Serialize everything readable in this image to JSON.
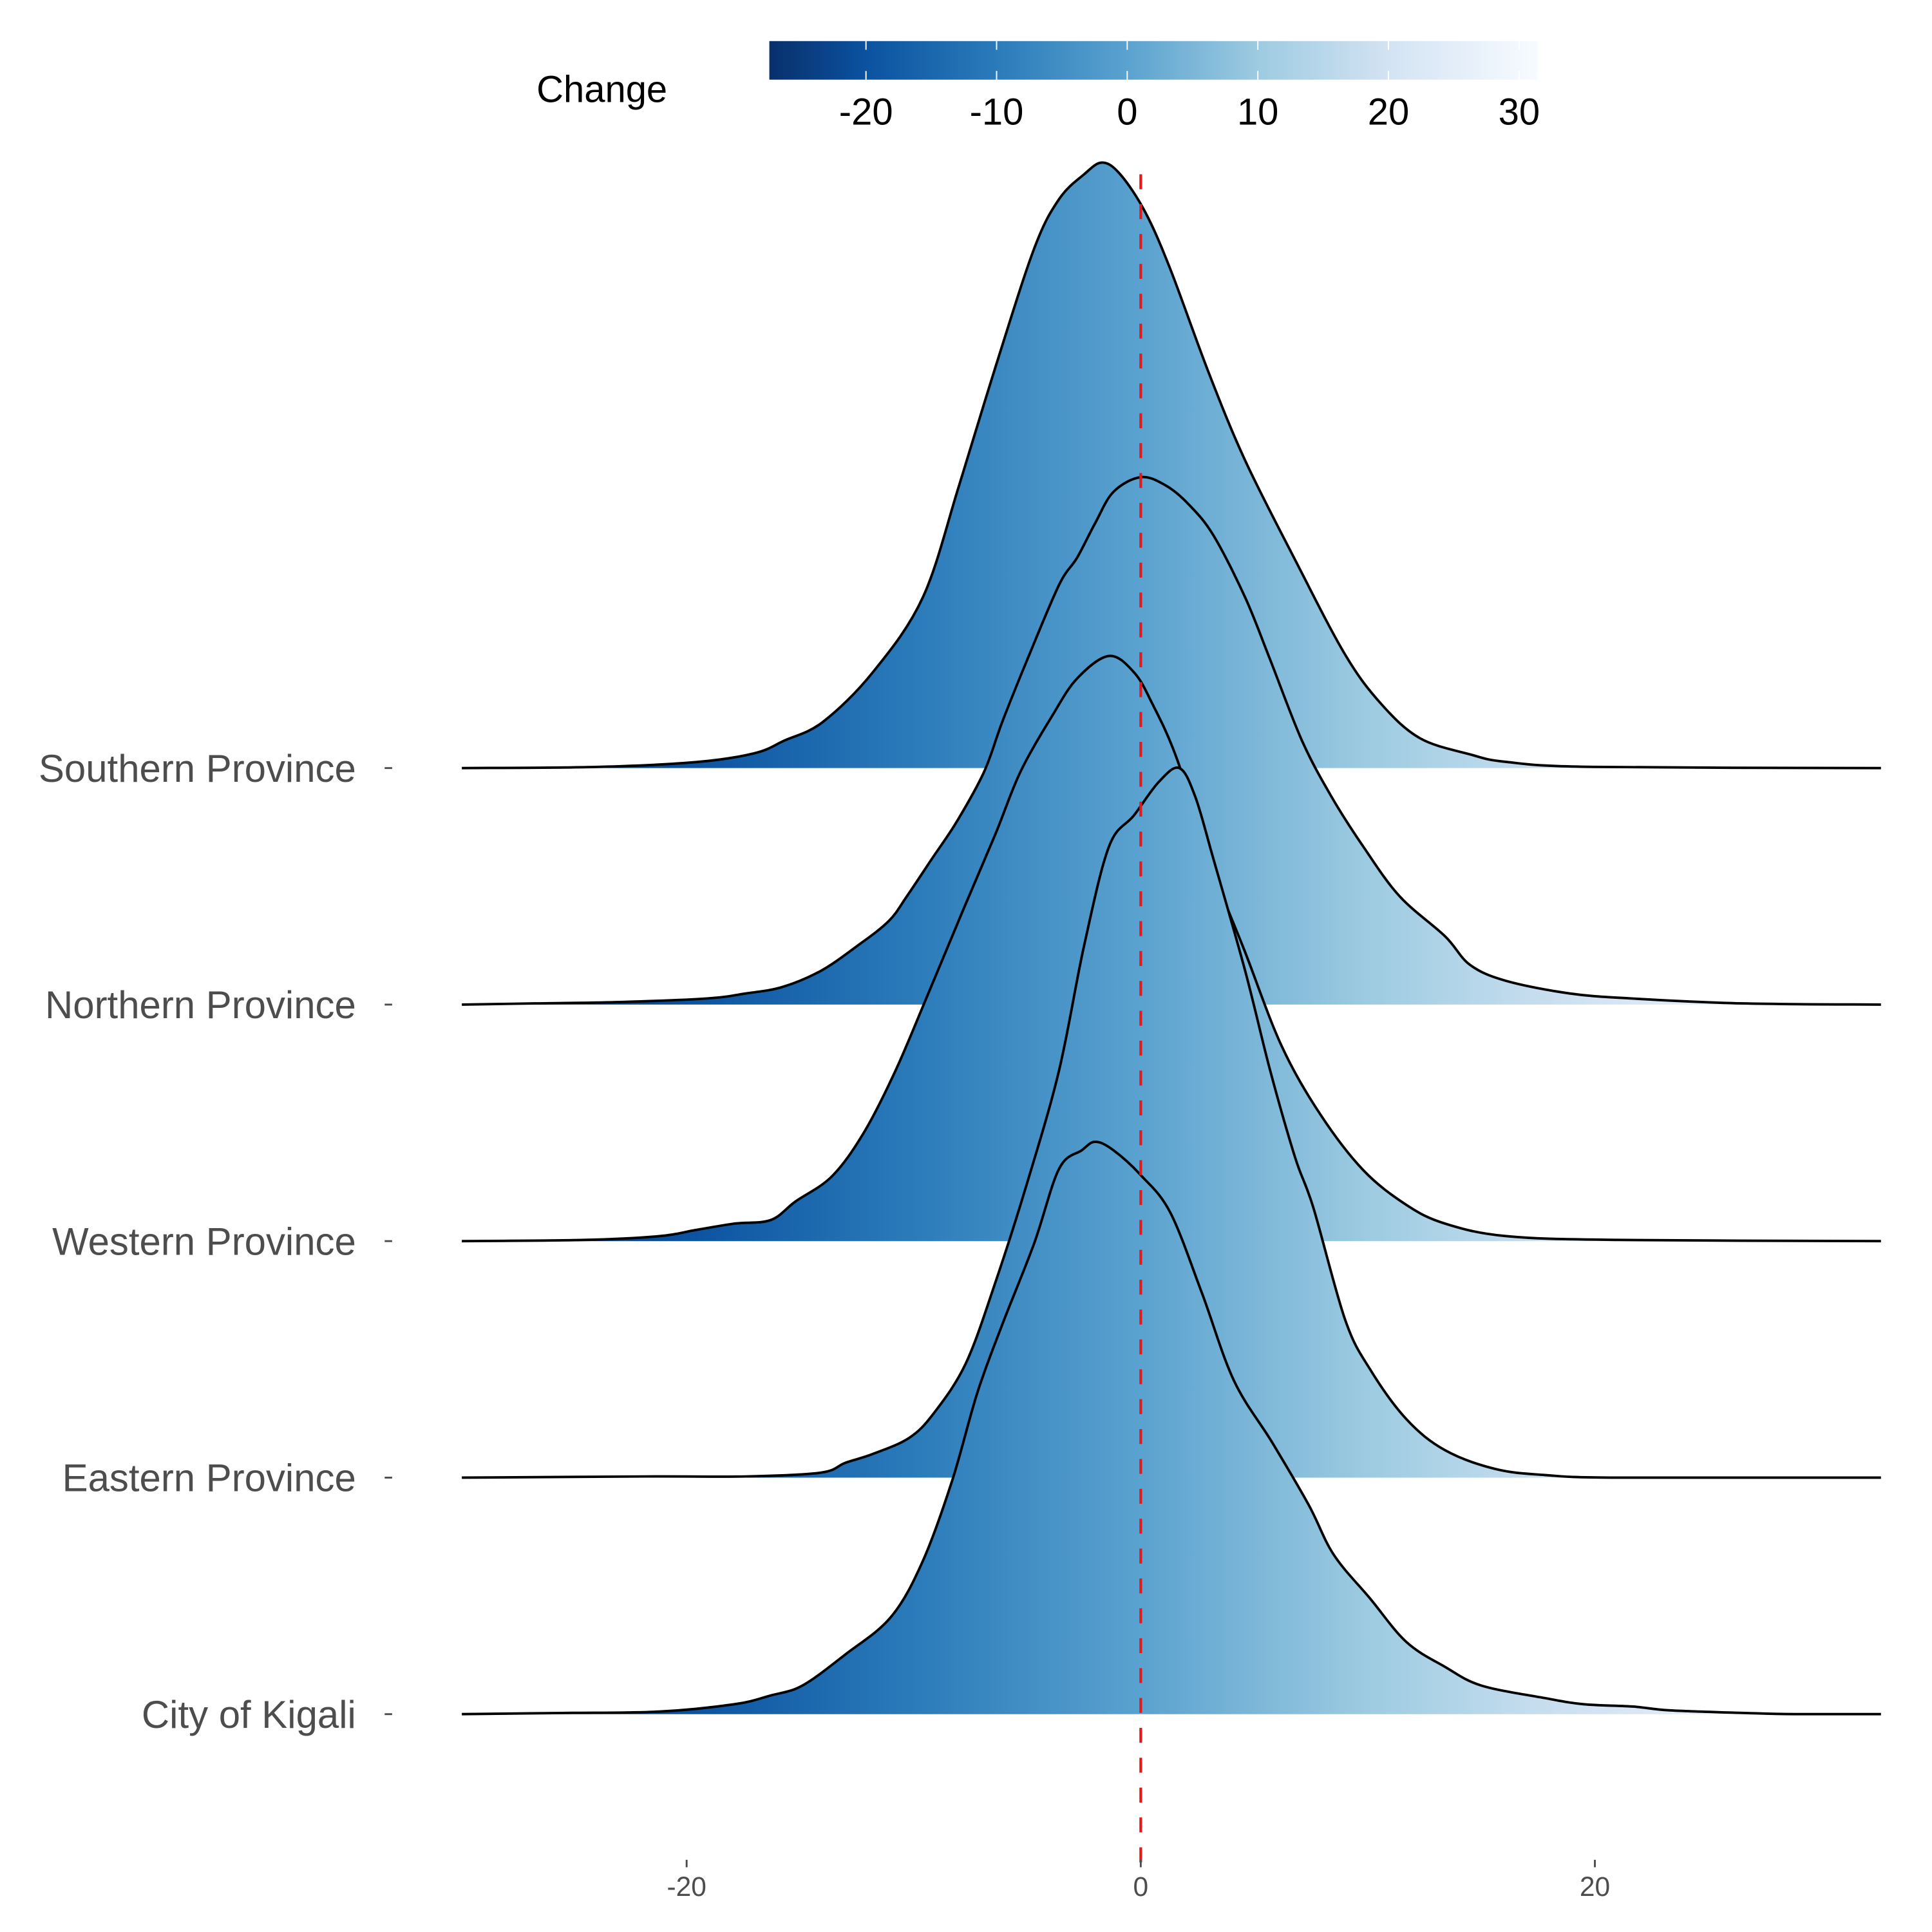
{
  "chart_data": {
    "type": "ridgeline",
    "title": "",
    "xlabel": "",
    "ylabel": "",
    "xlim": [
      -29.9,
      32.6
    ],
    "x_ticks": [
      "-20",
      "0",
      "20"
    ],
    "x_tick_values": [
      -20,
      0,
      20
    ],
    "reference_line": {
      "x": 0,
      "style": "dashed",
      "color": "#e31a1c"
    },
    "legend": {
      "title": "Change",
      "placement": "top",
      "range": [
        -27.4,
        31.4
      ],
      "ticks": [
        "-20",
        "-10",
        "0",
        "10",
        "20",
        "30"
      ],
      "tick_values": [
        -20,
        -10,
        0,
        10,
        20,
        30
      ],
      "colors": [
        {
          "v": -27.4,
          "c": "#08306b"
        },
        {
          "v": -20,
          "c": "#0b52a0"
        },
        {
          "v": -10,
          "c": "#2b7bba"
        },
        {
          "v": 0,
          "c": "#5aa2cf"
        },
        {
          "v": 10,
          "c": "#9dcbe1"
        },
        {
          "v": 20,
          "c": "#d3e3f3"
        },
        {
          "v": 31.4,
          "c": "#f7fbff"
        }
      ]
    },
    "density_units": "relative height (1 = spacing between rows)",
    "series": [
      {
        "name": "Southern Province",
        "points": [
          [
            -29.9,
            0
          ],
          [
            -23.9,
            0.005
          ],
          [
            -19.5,
            0.026
          ],
          [
            -17.0,
            0.063
          ],
          [
            -15.7,
            0.116
          ],
          [
            -14.0,
            0.195
          ],
          [
            -11.8,
            0.405
          ],
          [
            -9.6,
            0.721
          ],
          [
            -8.0,
            1.195
          ],
          [
            -6.4,
            1.695
          ],
          [
            -4.7,
            2.195
          ],
          [
            -3.6,
            2.405
          ],
          [
            -2.5,
            2.51
          ],
          [
            -1.7,
            2.56
          ],
          [
            -0.9,
            2.51
          ],
          [
            0.2,
            2.35
          ],
          [
            1.3,
            2.11
          ],
          [
            3.0,
            1.67
          ],
          [
            4.6,
            1.3
          ],
          [
            6.8,
            0.88
          ],
          [
            9.0,
            0.48
          ],
          [
            10.6,
            0.27
          ],
          [
            12.3,
            0.126
          ],
          [
            14.5,
            0.058
          ],
          [
            16.1,
            0.026
          ],
          [
            19.9,
            0.005
          ],
          [
            32.6,
            0
          ]
        ]
      },
      {
        "name": "Northern Province",
        "points": [
          [
            -29.9,
            0
          ],
          [
            -26.7,
            0.005
          ],
          [
            -22.9,
            0.011
          ],
          [
            -19.1,
            0.026
          ],
          [
            -17.4,
            0.047
          ],
          [
            -15.8,
            0.074
          ],
          [
            -14.1,
            0.142
          ],
          [
            -12.5,
            0.247
          ],
          [
            -11.1,
            0.353
          ],
          [
            -10.3,
            0.458
          ],
          [
            -9.2,
            0.616
          ],
          [
            -8.1,
            0.774
          ],
          [
            -6.9,
            0.984
          ],
          [
            -6.1,
            1.195
          ],
          [
            -5.0,
            1.458
          ],
          [
            -3.6,
            1.774
          ],
          [
            -2.8,
            1.89
          ],
          [
            -2.0,
            2.037
          ],
          [
            -1.2,
            2.168
          ],
          [
            0,
            2.23
          ],
          [
            1.1,
            2.195
          ],
          [
            2.1,
            2.116
          ],
          [
            3.2,
            1.984
          ],
          [
            4.6,
            1.721
          ],
          [
            5.7,
            1.458
          ],
          [
            7.1,
            1.116
          ],
          [
            8.4,
            0.879
          ],
          [
            9.8,
            0.668
          ],
          [
            11.4,
            0.458
          ],
          [
            13.4,
            0.289
          ],
          [
            14.5,
            0.168
          ],
          [
            16.1,
            0.1
          ],
          [
            18.9,
            0.047
          ],
          [
            21.6,
            0.026
          ],
          [
            26.5,
            0.005
          ],
          [
            32.6,
            0
          ]
        ]
      },
      {
        "name": "Western Province",
        "points": [
          [
            -29.9,
            0
          ],
          [
            -24.5,
            0.005
          ],
          [
            -21.2,
            0.021
          ],
          [
            -19.6,
            0.047
          ],
          [
            -17.9,
            0.074
          ],
          [
            -16.3,
            0.089
          ],
          [
            -15.2,
            0.168
          ],
          [
            -13.6,
            0.274
          ],
          [
            -12.2,
            0.458
          ],
          [
            -10.8,
            0.721
          ],
          [
            -9.4,
            1.037
          ],
          [
            -7.8,
            1.405
          ],
          [
            -6.4,
            1.721
          ],
          [
            -5.3,
            1.984
          ],
          [
            -3.9,
            2.221
          ],
          [
            -2.8,
            2.379
          ],
          [
            -1.4,
            2.474
          ],
          [
            -0.3,
            2.405
          ],
          [
            0.5,
            2.274
          ],
          [
            1.6,
            2.037
          ],
          [
            3.2,
            1.563
          ],
          [
            4.6,
            1.221
          ],
          [
            6.2,
            0.826
          ],
          [
            7.9,
            0.537
          ],
          [
            9.8,
            0.3
          ],
          [
            11.7,
            0.153
          ],
          [
            13.4,
            0.074
          ],
          [
            16.1,
            0.021
          ],
          [
            21.0,
            0.005
          ],
          [
            32.6,
            0
          ]
        ]
      },
      {
        "name": "Eastern Province",
        "points": [
          [
            -29.9,
            0
          ],
          [
            -21.8,
            0.005
          ],
          [
            -17.4,
            0.005
          ],
          [
            -14.1,
            0.021
          ],
          [
            -13.0,
            0.063
          ],
          [
            -11.8,
            0.1
          ],
          [
            -10.2,
            0.168
          ],
          [
            -9.1,
            0.274
          ],
          [
            -7.7,
            0.484
          ],
          [
            -6.4,
            0.826
          ],
          [
            -5.0,
            1.247
          ],
          [
            -3.6,
            1.721
          ],
          [
            -2.5,
            2.247
          ],
          [
            -1.4,
            2.668
          ],
          [
            -0.3,
            2.8
          ],
          [
            0.8,
            2.942
          ],
          [
            1.7,
            3.0
          ],
          [
            2.4,
            2.879
          ],
          [
            3.2,
            2.616
          ],
          [
            4.6,
            2.142
          ],
          [
            5.7,
            1.721
          ],
          [
            6.8,
            1.353
          ],
          [
            7.6,
            1.142
          ],
          [
            9.0,
            0.668
          ],
          [
            10.1,
            0.458
          ],
          [
            11.7,
            0.247
          ],
          [
            13.4,
            0.116
          ],
          [
            15.6,
            0.037
          ],
          [
            17.8,
            0.011
          ],
          [
            21.0,
            0
          ],
          [
            32.6,
            0
          ]
        ]
      },
      {
        "name": "City of Kigali",
        "points": [
          [
            -29.9,
            0
          ],
          [
            -25.5,
            0.005
          ],
          [
            -21.2,
            0.011
          ],
          [
            -17.9,
            0.042
          ],
          [
            -16.3,
            0.079
          ],
          [
            -14.9,
            0.121
          ],
          [
            -13.0,
            0.253
          ],
          [
            -11.0,
            0.411
          ],
          [
            -9.6,
            0.647
          ],
          [
            -8.3,
            0.989
          ],
          [
            -7.2,
            1.358
          ],
          [
            -6.1,
            1.647
          ],
          [
            -4.7,
            1.989
          ],
          [
            -3.6,
            2.305
          ],
          [
            -2.6,
            2.384
          ],
          [
            -2.0,
            2.42
          ],
          [
            -1.2,
            2.384
          ],
          [
            0,
            2.279
          ],
          [
            1.3,
            2.121
          ],
          [
            2.7,
            1.779
          ],
          [
            4.1,
            1.411
          ],
          [
            5.8,
            1.147
          ],
          [
            7.4,
            0.884
          ],
          [
            8.5,
            0.674
          ],
          [
            10.1,
            0.489
          ],
          [
            11.7,
            0.305
          ],
          [
            13.4,
            0.2
          ],
          [
            15.0,
            0.121
          ],
          [
            17.8,
            0.068
          ],
          [
            19.5,
            0.042
          ],
          [
            21.7,
            0.032
          ],
          [
            23.3,
            0.016
          ],
          [
            26.6,
            0.005
          ],
          [
            28.8,
            0
          ],
          [
            32.6,
            0
          ]
        ]
      }
    ]
  }
}
